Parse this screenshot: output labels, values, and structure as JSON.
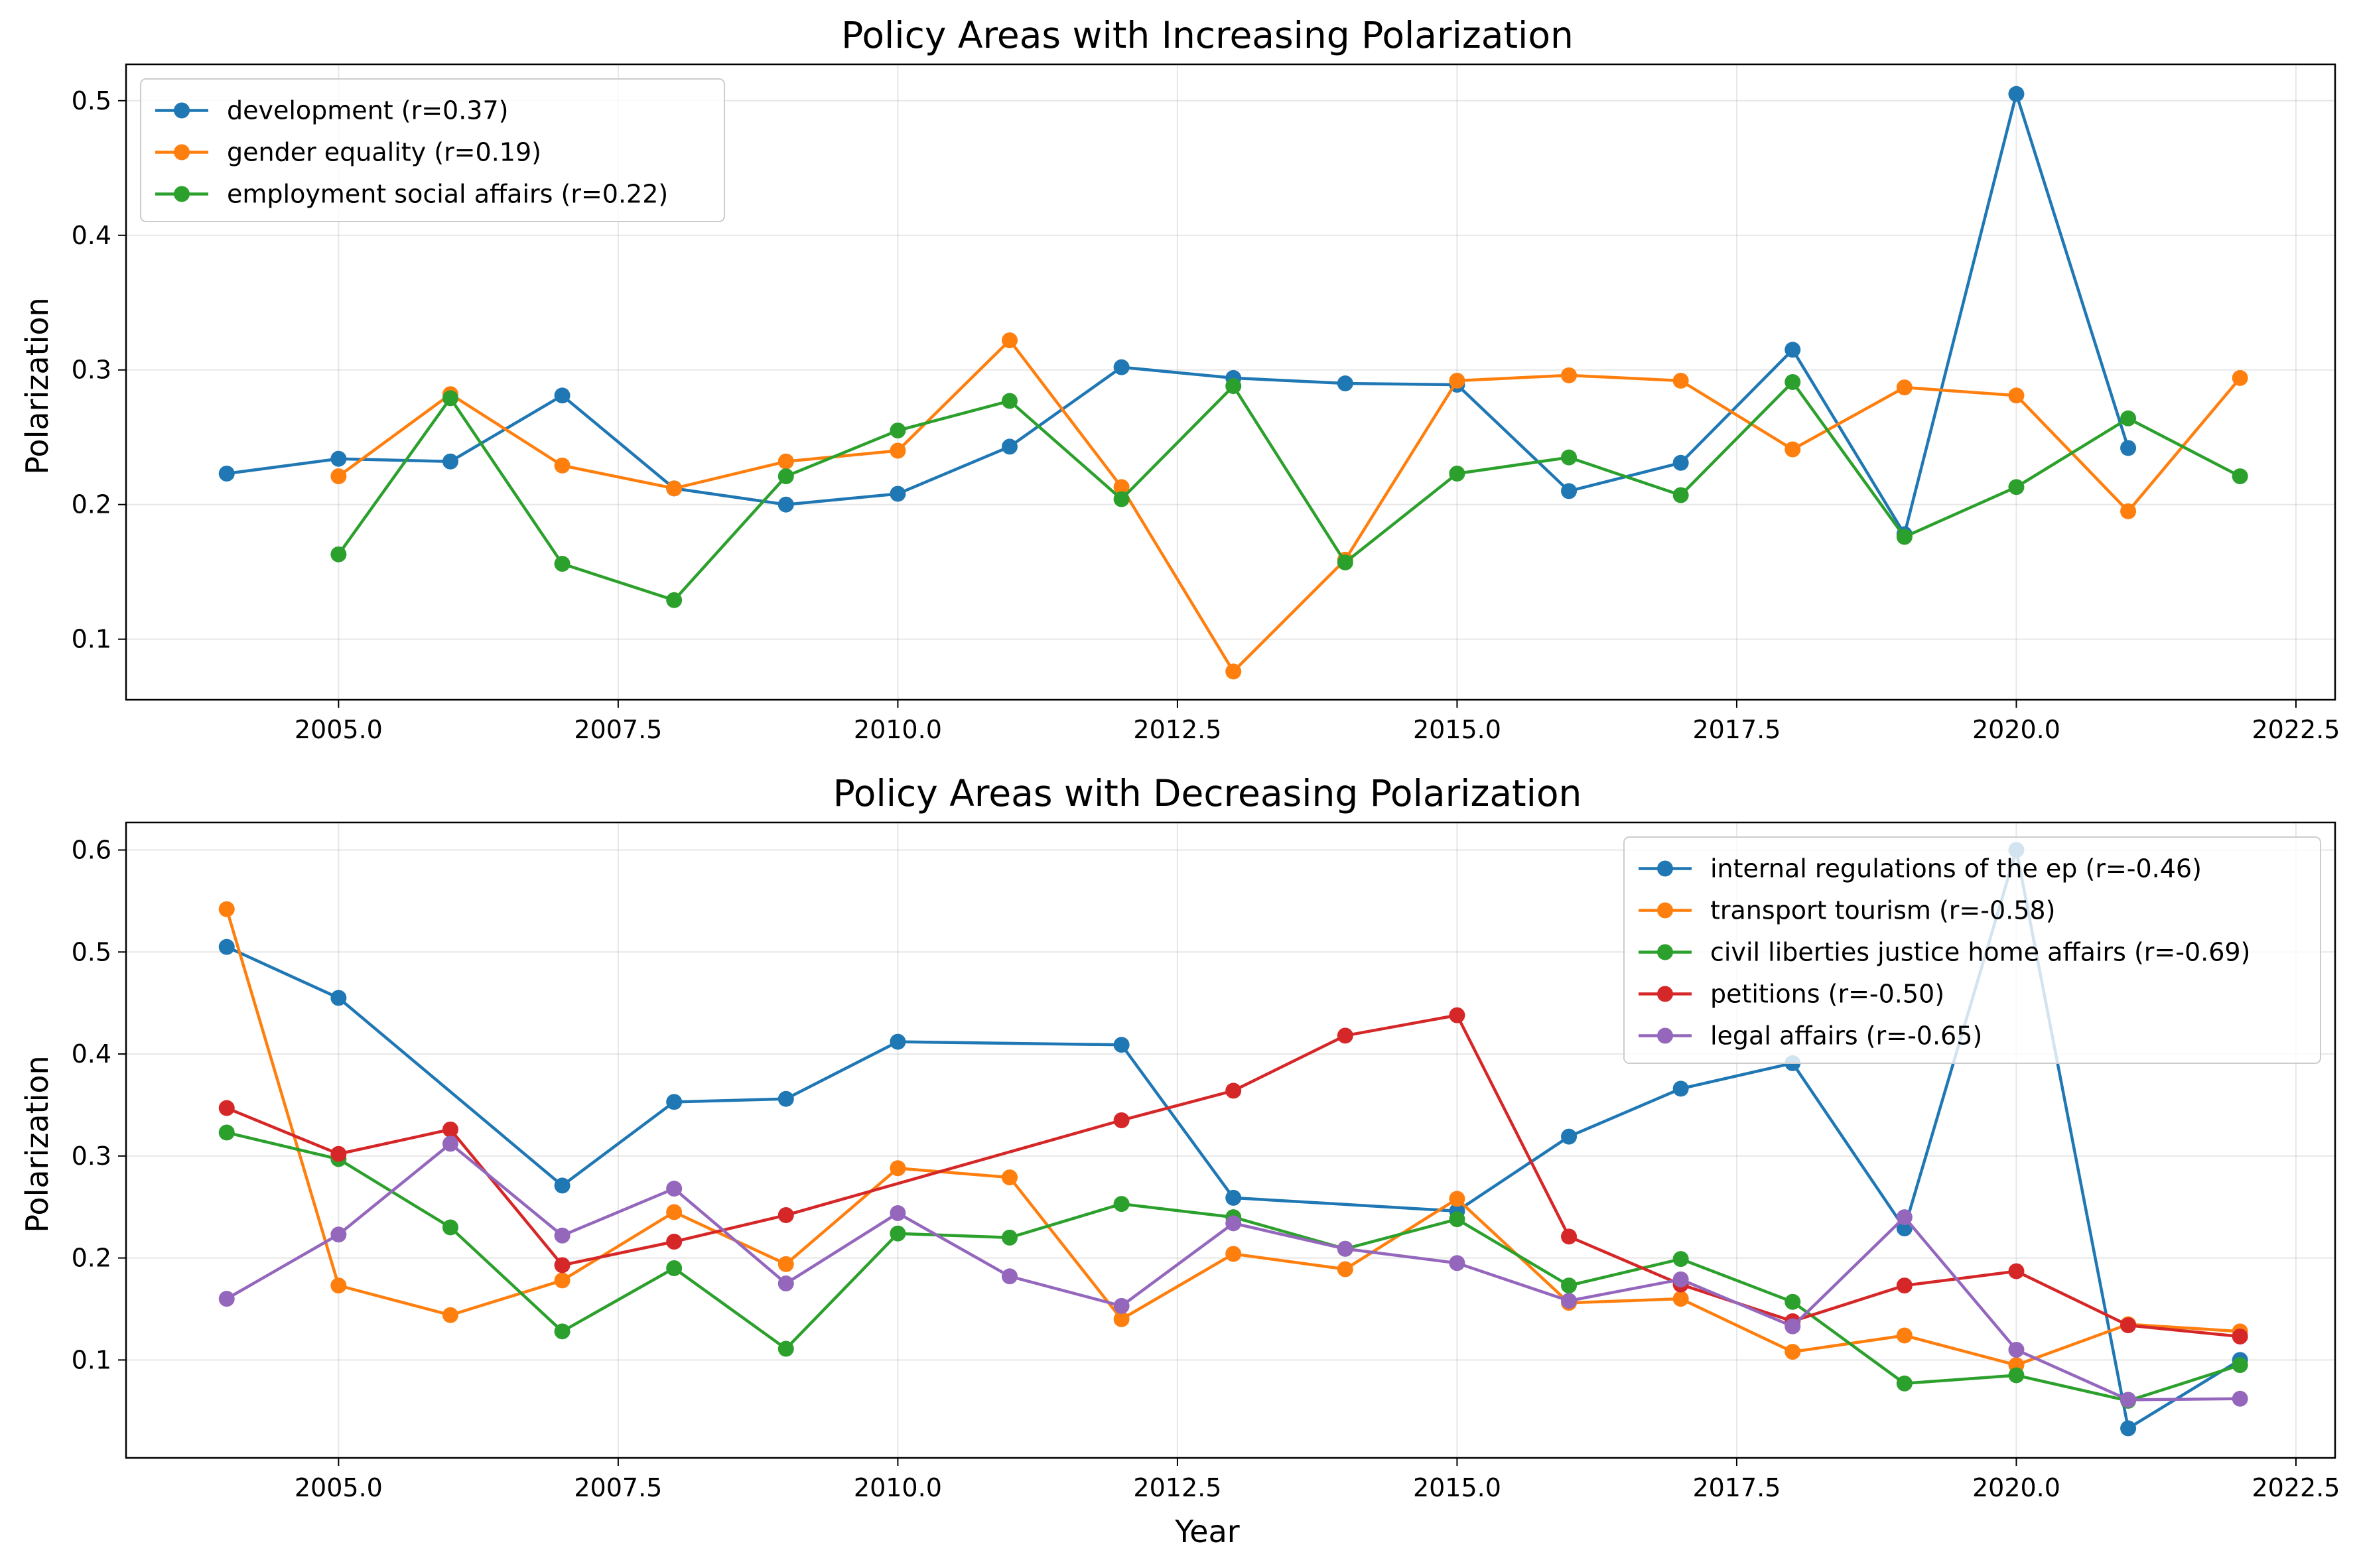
{
  "chart_data": [
    {
      "type": "line",
      "title": "Policy Areas with Increasing Polarization",
      "xlabel": "",
      "ylabel": "Polarization",
      "xlim": [
        2003.1,
        2022.85
      ],
      "ylim": [
        0.055,
        0.527
      ],
      "xticks": [
        2005.0,
        2007.5,
        2010.0,
        2012.5,
        2015.0,
        2017.5,
        2020.0,
        2022.5
      ],
      "xtick_labels": [
        "2005.0",
        "2007.5",
        "2010.0",
        "2012.5",
        "2015.0",
        "2017.5",
        "2020.0",
        "2022.5"
      ],
      "yticks": [
        0.1,
        0.2,
        0.3,
        0.4,
        0.5
      ],
      "ytick_labels": [
        "0.1",
        "0.2",
        "0.3",
        "0.4",
        "0.5"
      ],
      "grid": true,
      "legend": "upper left",
      "series": [
        {
          "name": "development (r=0.37)",
          "color": "#1f77b4",
          "x": [
            2004,
            2005,
            2006,
            2007,
            2008,
            2009,
            2010,
            2011,
            2012,
            2013,
            2014,
            2015,
            2016,
            2017,
            2018,
            2019,
            2020,
            2021
          ],
          "y": [
            0.223,
            0.234,
            0.232,
            0.281,
            0.212,
            0.2,
            0.208,
            0.243,
            0.302,
            0.294,
            0.29,
            0.289,
            0.21,
            0.231,
            0.315,
            0.178,
            0.505,
            0.242
          ]
        },
        {
          "name": "gender equality (r=0.19)",
          "color": "#ff7f0e",
          "x": [
            2005,
            2006,
            2007,
            2008,
            2009,
            2010,
            2011,
            2012,
            2013,
            2014,
            2015,
            2016,
            2017,
            2018,
            2019,
            2020,
            2021,
            2022
          ],
          "y": [
            0.221,
            0.282,
            0.229,
            0.212,
            0.232,
            0.24,
            0.322,
            0.213,
            0.076,
            0.159,
            0.292,
            0.296,
            0.292,
            0.241,
            0.287,
            0.281,
            0.195,
            0.294
          ]
        },
        {
          "name": "employment social affairs (r=0.22)",
          "color": "#2ca02c",
          "x": [
            2005,
            2006,
            2007,
            2008,
            2009,
            2010,
            2011,
            2012,
            2013,
            2014,
            2015,
            2016,
            2017,
            2018,
            2019,
            2020,
            2021,
            2022
          ],
          "y": [
            0.163,
            0.279,
            0.156,
            0.129,
            0.221,
            0.255,
            0.277,
            0.204,
            0.288,
            0.157,
            0.223,
            0.235,
            0.207,
            0.291,
            0.176,
            0.213,
            0.264,
            0.221
          ]
        }
      ]
    },
    {
      "type": "line",
      "title": "Policy Areas with Decreasing Polarization",
      "xlabel": "Year",
      "ylabel": "Polarization",
      "xlim": [
        2003.1,
        2022.85
      ],
      "ylim": [
        0.004,
        0.627
      ],
      "xticks": [
        2005.0,
        2007.5,
        2010.0,
        2012.5,
        2015.0,
        2017.5,
        2020.0,
        2022.5
      ],
      "xtick_labels": [
        "2005.0",
        "2007.5",
        "2010.0",
        "2012.5",
        "2015.0",
        "2017.5",
        "2020.0",
        "2022.5"
      ],
      "yticks": [
        0.1,
        0.2,
        0.3,
        0.4,
        0.5,
        0.6
      ],
      "ytick_labels": [
        "0.1",
        "0.2",
        "0.3",
        "0.4",
        "0.5",
        "0.6"
      ],
      "grid": true,
      "legend": "upper right",
      "series": [
        {
          "name": "internal regulations of the ep (r=-0.46)",
          "color": "#1f77b4",
          "x": [
            2004,
            2005,
            2007,
            2008,
            2009,
            2010,
            2012,
            2013,
            2015,
            2016,
            2017,
            2018,
            2019,
            2020,
            2021,
            2022
          ],
          "y": [
            0.505,
            0.455,
            0.271,
            0.353,
            0.356,
            0.412,
            0.409,
            0.259,
            0.246,
            0.319,
            0.366,
            0.391,
            0.229,
            0.6,
            0.033,
            0.1
          ]
        },
        {
          "name": "transport tourism (r=-0.58)",
          "color": "#ff7f0e",
          "x": [
            2004,
            2005,
            2006,
            2007,
            2008,
            2009,
            2010,
            2011,
            2012,
            2013,
            2014,
            2015,
            2016,
            2017,
            2018,
            2019,
            2020,
            2021,
            2022
          ],
          "y": [
            0.542,
            0.173,
            0.144,
            0.178,
            0.245,
            0.194,
            0.288,
            0.279,
            0.14,
            0.204,
            0.189,
            0.258,
            0.156,
            0.16,
            0.108,
            0.124,
            0.095,
            0.135,
            0.128
          ]
        },
        {
          "name": "civil liberties justice home affairs (r=-0.69)",
          "color": "#2ca02c",
          "x": [
            2004,
            2005,
            2006,
            2007,
            2008,
            2009,
            2010,
            2011,
            2012,
            2013,
            2014,
            2015,
            2016,
            2017,
            2018,
            2019,
            2020,
            2021,
            2022
          ],
          "y": [
            0.323,
            0.297,
            0.23,
            0.128,
            0.19,
            0.111,
            0.224,
            0.22,
            0.253,
            0.24,
            0.209,
            0.238,
            0.173,
            0.199,
            0.157,
            0.077,
            0.085,
            0.06,
            0.095
          ]
        },
        {
          "name": "petitions (r=-0.50)",
          "color": "#d62728",
          "x": [
            2004,
            2005,
            2006,
            2007,
            2008,
            2009,
            2012,
            2013,
            2014,
            2015,
            2016,
            2017,
            2018,
            2019,
            2020,
            2021,
            2022
          ],
          "y": [
            0.347,
            0.302,
            0.326,
            0.193,
            0.216,
            0.242,
            0.335,
            0.364,
            0.418,
            0.438,
            0.221,
            0.174,
            0.138,
            0.173,
            0.187,
            0.134,
            0.123
          ]
        },
        {
          "name": "legal affairs (r=-0.65)",
          "color": "#9467bd",
          "x": [
            2004,
            2005,
            2006,
            2007,
            2008,
            2009,
            2010,
            2011,
            2012,
            2013,
            2014,
            2015,
            2016,
            2017,
            2018,
            2019,
            2020,
            2021,
            2022
          ],
          "y": [
            0.16,
            0.223,
            0.312,
            0.222,
            0.268,
            0.175,
            0.244,
            0.182,
            0.153,
            0.234,
            0.209,
            0.195,
            0.158,
            0.179,
            0.133,
            0.24,
            0.11,
            0.061,
            0.062
          ]
        }
      ]
    }
  ]
}
